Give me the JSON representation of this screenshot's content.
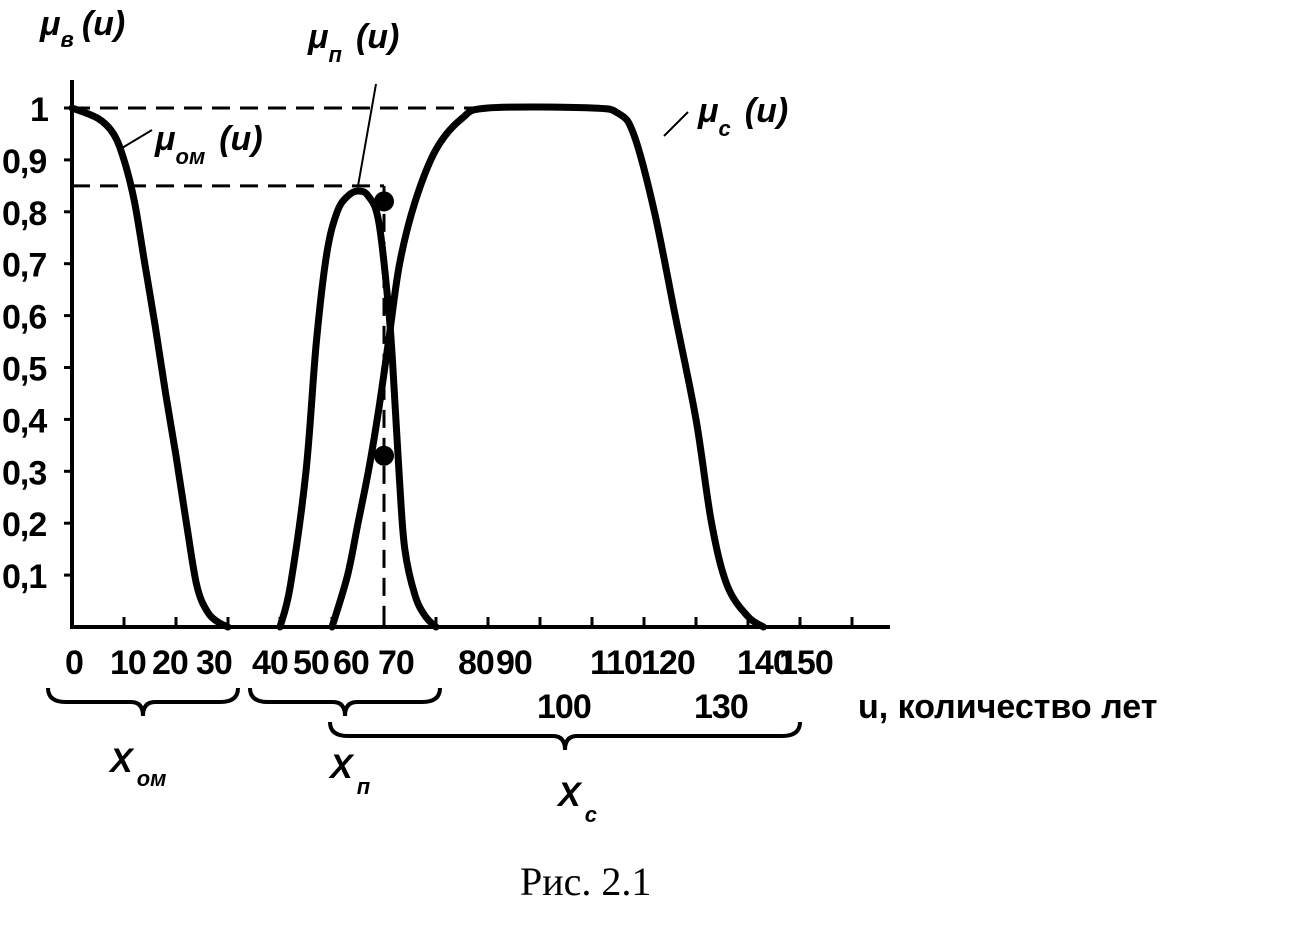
{
  "chart_data": {
    "type": "line",
    "x_label": "u, количество лет",
    "x_ticks_row1": [
      "0",
      "10",
      "20",
      "30",
      "40",
      "50",
      "60",
      "70",
      "80",
      "90",
      "110",
      "120",
      "140",
      "150"
    ],
    "x_ticks_row2": [
      "100",
      "130"
    ],
    "x_range": [
      0,
      150
    ],
    "y_ticks": [
      "0,1",
      "0,2",
      "0,3",
      "0,4",
      "0,5",
      "0,6",
      "0,7",
      "0,8",
      "0,9",
      "1"
    ],
    "y_range": [
      0,
      1
    ],
    "y_axis_symbol": "μ",
    "y_axis_sub": "в",
    "y_axis_arg": "(u)",
    "series": [
      {
        "name_symbol": "μ",
        "name_sub": "ом",
        "name_arg": "(u)",
        "points": [
          [
            0,
            1
          ],
          [
            5,
            0.98
          ],
          [
            8,
            0.95
          ],
          [
            10,
            0.9
          ],
          [
            12,
            0.82
          ],
          [
            14,
            0.7
          ],
          [
            16,
            0.58
          ],
          [
            18,
            0.45
          ],
          [
            20,
            0.33
          ],
          [
            22,
            0.2
          ],
          [
            24,
            0.08
          ],
          [
            26,
            0.03
          ],
          [
            28,
            0.01
          ],
          [
            30,
            0
          ]
        ]
      },
      {
        "name_symbol": "μ",
        "name_sub": "п",
        "name_arg": "(u)",
        "points": [
          [
            40,
            0
          ],
          [
            42,
            0.08
          ],
          [
            45,
            0.3
          ],
          [
            47,
            0.55
          ],
          [
            49,
            0.72
          ],
          [
            51,
            0.8
          ],
          [
            53,
            0.83
          ],
          [
            55,
            0.84
          ],
          [
            57,
            0.83
          ],
          [
            59,
            0.78
          ],
          [
            61,
            0.6
          ],
          [
            62,
            0.45
          ],
          [
            63,
            0.28
          ],
          [
            64,
            0.15
          ],
          [
            66,
            0.06
          ],
          [
            68,
            0.02
          ],
          [
            70,
            0
          ]
        ]
      },
      {
        "name_symbol": "μ",
        "name_sub": "с",
        "name_arg": "(u)",
        "points": [
          [
            50,
            0
          ],
          [
            53,
            0.1
          ],
          [
            55,
            0.2
          ],
          [
            57,
            0.3
          ],
          [
            59,
            0.42
          ],
          [
            61,
            0.56
          ],
          [
            63,
            0.7
          ],
          [
            66,
            0.82
          ],
          [
            70,
            0.92
          ],
          [
            75,
            0.98
          ],
          [
            80,
            1
          ],
          [
            100,
            1
          ],
          [
            105,
            0.99
          ],
          [
            108,
            0.95
          ],
          [
            112,
            0.8
          ],
          [
            116,
            0.6
          ],
          [
            120,
            0.4
          ],
          [
            123,
            0.2
          ],
          [
            126,
            0.08
          ],
          [
            130,
            0.02
          ],
          [
            133,
            0
          ]
        ]
      }
    ],
    "annotations": {
      "marked_points": [
        [
          60,
          0.82
        ],
        [
          60,
          0.33
        ]
      ],
      "guide_levels": [
        1,
        0.85
      ],
      "guide_x": 60
    },
    "braces": [
      {
        "symbol": "X",
        "sub": "ом",
        "from": 0,
        "to": 30
      },
      {
        "symbol": "X",
        "sub": "п",
        "from": 32,
        "to": 70
      },
      {
        "symbol": "X",
        "sub": "с",
        "from": 50,
        "to": 133
      }
    ]
  },
  "caption": "Рис. 2.1"
}
